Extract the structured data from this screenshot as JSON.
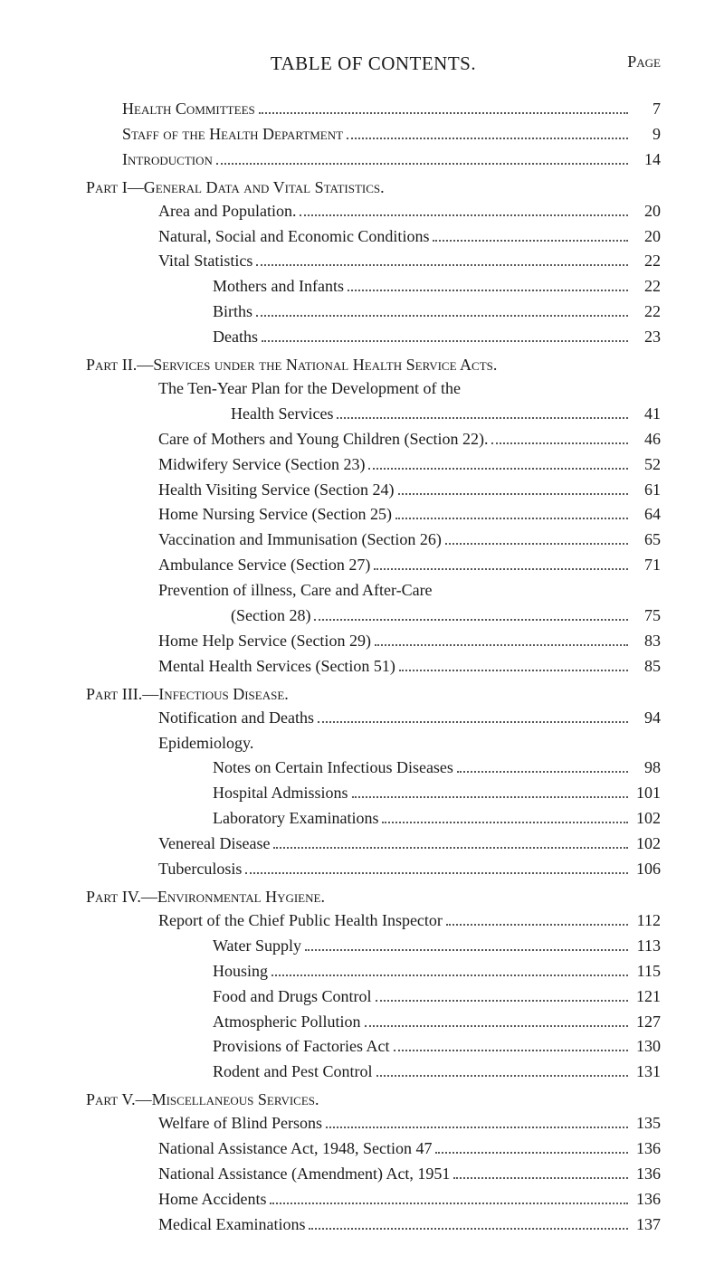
{
  "title": "TABLE OF CONTENTS.",
  "page_label": "Page",
  "front": [
    {
      "label": "Health Committees",
      "page": "7",
      "sc": true
    },
    {
      "label": "Staff of the Health Department",
      "page": "9",
      "sc": true
    },
    {
      "label": "Introduction",
      "page": "14",
      "sc": true
    }
  ],
  "parts": [
    {
      "heading": "Part I—General Data and Vital Statistics.",
      "items": [
        {
          "indent": 1,
          "label": "Area and Population.",
          "page": "20"
        },
        {
          "indent": 1,
          "label": "Natural, Social and Economic Conditions",
          "page": "20"
        },
        {
          "indent": 1,
          "label": "Vital Statistics",
          "page": "22"
        },
        {
          "indent": 2,
          "label": "Mothers and Infants",
          "page": "22"
        },
        {
          "indent": 2,
          "label": "Births",
          "page": "22"
        },
        {
          "indent": 2,
          "label": "Deaths",
          "page": "23"
        }
      ]
    },
    {
      "heading": "Part II.—Services under the National Health Service Acts.",
      "items": [
        {
          "indent": 1,
          "wrap": true,
          "label_a": "The Ten-Year Plan for the Development of the",
          "label_b": "Health Services",
          "page": "41"
        },
        {
          "indent": 1,
          "label": "Care of Mothers and Young Children (Section 22).",
          "page": "46"
        },
        {
          "indent": 1,
          "label": "Midwifery Service (Section 23)",
          "page": "52"
        },
        {
          "indent": 1,
          "label": "Health Visiting Service (Section 24)",
          "page": "61"
        },
        {
          "indent": 1,
          "label": "Home Nursing Service (Section 25)",
          "page": "64"
        },
        {
          "indent": 1,
          "label": "Vaccination and Immunisation (Section 26)",
          "page": "65"
        },
        {
          "indent": 1,
          "label": "Ambulance Service (Section 27)",
          "page": "71"
        },
        {
          "indent": 1,
          "wrap": true,
          "label_a": "Prevention of illness, Care and After-Care",
          "label_b": "(Section 28)",
          "page": "75"
        },
        {
          "indent": 1,
          "label": "Home Help Service (Section 29)",
          "page": "83"
        },
        {
          "indent": 1,
          "label": "Mental Health Services (Section 51)",
          "page": "85"
        }
      ]
    },
    {
      "heading": "Part III.—Infectious Disease.",
      "items": [
        {
          "indent": 1,
          "label": "Notification and Deaths",
          "page": "94"
        },
        {
          "indent": 1,
          "label": "Epidemiology.",
          "nodots": true
        },
        {
          "indent": 2,
          "label": "Notes on Certain Infectious Diseases",
          "page": "98"
        },
        {
          "indent": 2,
          "label": "Hospital Admissions",
          "page": "101"
        },
        {
          "indent": 2,
          "label": "Laboratory Examinations",
          "page": "102"
        },
        {
          "indent": 1,
          "label": "Venereal Disease",
          "page": "102"
        },
        {
          "indent": 1,
          "label": "Tuberculosis",
          "page": "106"
        }
      ]
    },
    {
      "heading": "Part IV.—Environmental Hygiene.",
      "items": [
        {
          "indent": 1,
          "label": "Report of the Chief Public Health Inspector",
          "page": "112"
        },
        {
          "indent": 2,
          "label": "Water Supply",
          "page": "113"
        },
        {
          "indent": 2,
          "label": "Housing",
          "page": "115"
        },
        {
          "indent": 2,
          "label": "Food and Drugs Control",
          "page": "121"
        },
        {
          "indent": 2,
          "label": "Atmospheric Pollution",
          "page": "127"
        },
        {
          "indent": 2,
          "label": "Provisions of Factories Act",
          "page": "130"
        },
        {
          "indent": 2,
          "label": "Rodent and Pest Control",
          "page": "131"
        }
      ]
    },
    {
      "heading": "Part V.—Miscellaneous Services.",
      "items": [
        {
          "indent": 1,
          "label": "Welfare of Blind Persons",
          "page": "135"
        },
        {
          "indent": 1,
          "label": "National Assistance Act, 1948, Section 47",
          "page": "136"
        },
        {
          "indent": 1,
          "label": "National Assistance (Amendment) Act, 1951",
          "page": "136"
        },
        {
          "indent": 1,
          "label": "Home Accidents",
          "page": "136"
        },
        {
          "indent": 1,
          "label": "Medical Examinations",
          "page": "137"
        }
      ]
    }
  ]
}
